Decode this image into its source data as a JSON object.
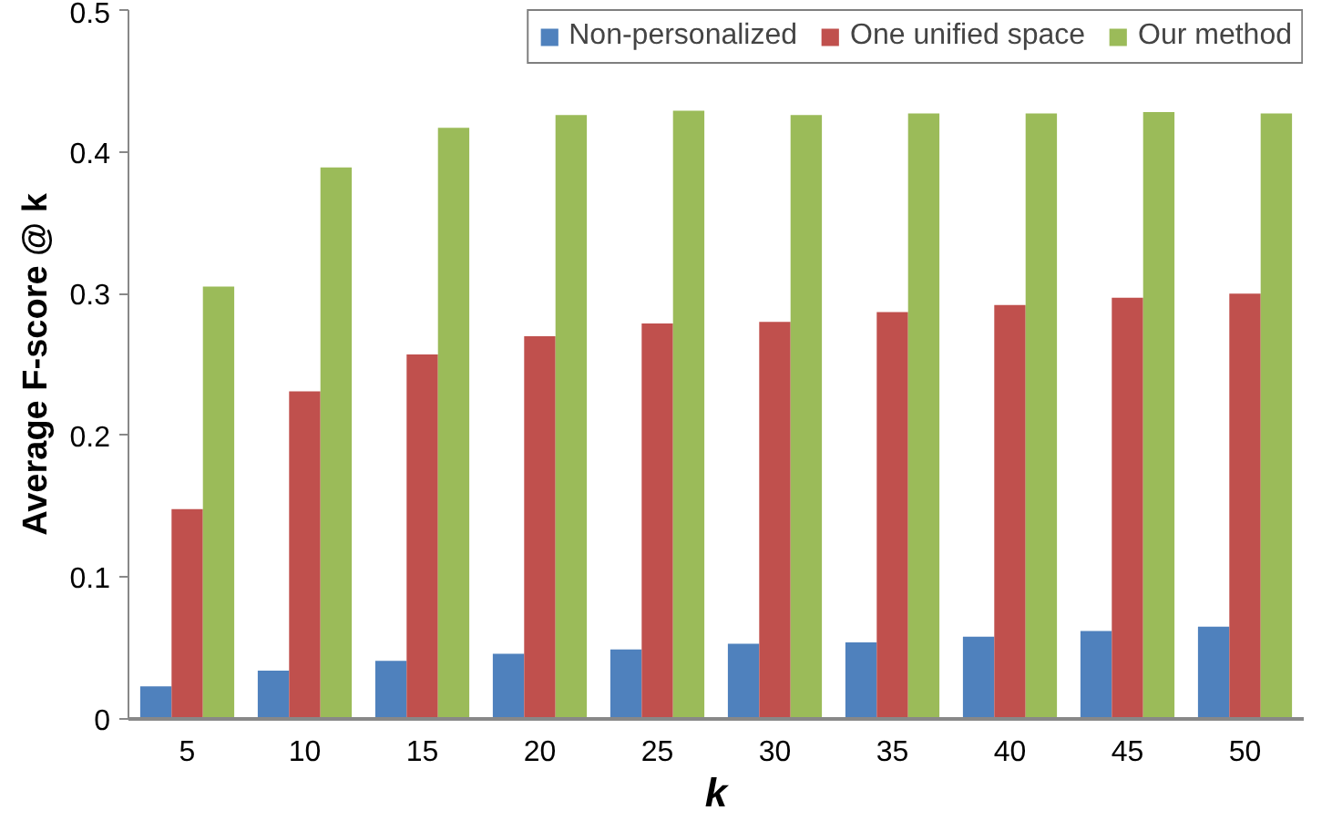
{
  "chart_data": {
    "type": "bar",
    "xlabel": "k",
    "ylabel": "Average F-score @ k",
    "categories": [
      "5",
      "10",
      "15",
      "20",
      "25",
      "30",
      "35",
      "40",
      "45",
      "50"
    ],
    "series": [
      {
        "name": "Non-personalized",
        "color": "#4f81bd",
        "values": [
          0.023,
          0.034,
          0.041,
          0.046,
          0.049,
          0.053,
          0.054,
          0.058,
          0.062,
          0.065
        ]
      },
      {
        "name": "One unified space",
        "color": "#c0504d",
        "values": [
          0.148,
          0.231,
          0.257,
          0.27,
          0.279,
          0.28,
          0.287,
          0.292,
          0.297,
          0.3
        ]
      },
      {
        "name": "Our method",
        "color": "#9bbb59",
        "values": [
          0.305,
          0.389,
          0.417,
          0.426,
          0.429,
          0.426,
          0.427,
          0.427,
          0.428,
          0.427
        ]
      }
    ],
    "ylim": [
      0,
      0.5
    ],
    "yticks": [
      {
        "value": 0,
        "label": "0"
      },
      0.1,
      0.2,
      0.3,
      0.4,
      0.5
    ],
    "grid": false,
    "legend": "top"
  }
}
